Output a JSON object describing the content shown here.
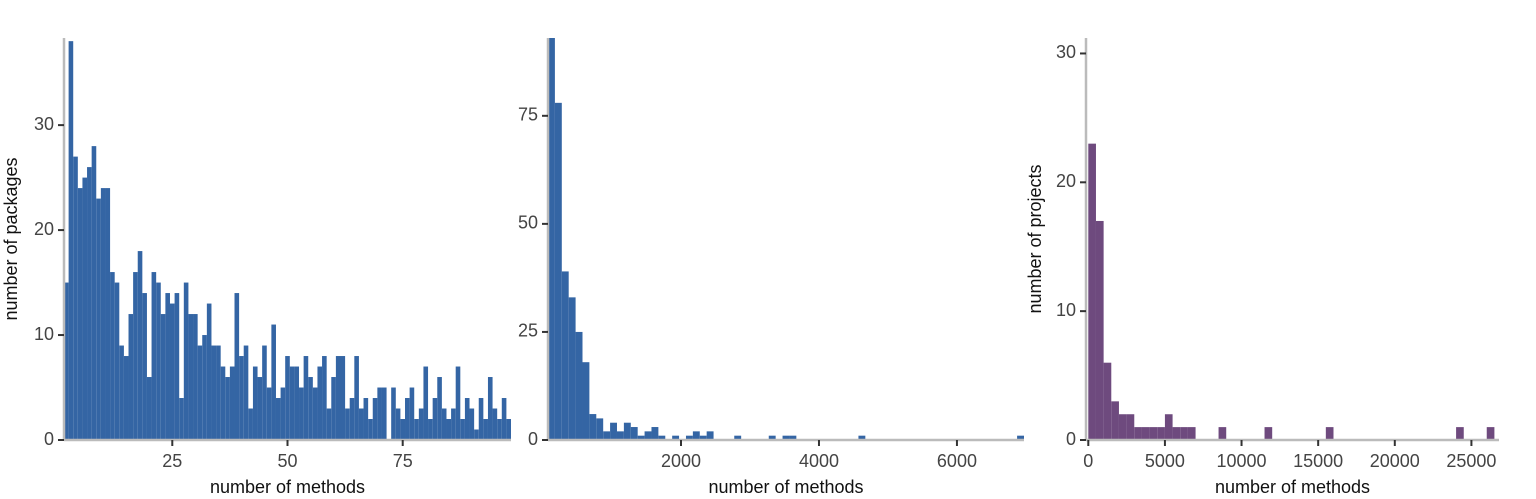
{
  "chart_data": [
    {
      "type": "histogram",
      "ylabel": "number of packages",
      "xlabel": "number of methods",
      "color": "#3465a4",
      "bins": [
        1.5,
        2.5,
        3.5,
        4.5,
        5.5,
        6.5,
        7.5,
        8.5,
        9.5,
        10.5,
        11.5,
        12.5,
        13.5,
        14.5,
        15.5,
        16.5,
        17.5,
        18.5,
        19.5,
        20.5,
        21.5,
        22.5,
        23.5,
        24.5,
        25.5,
        26.5,
        27.5,
        28.5,
        29.5,
        30.5,
        31.5,
        32.5,
        33.5,
        34.5,
        35.5,
        36.5,
        37.5,
        38.5,
        39.5,
        40.5,
        41.5,
        42.5,
        43.5,
        44.5,
        45.5,
        46.5,
        47.5,
        48.5,
        49.5,
        50.5,
        51.5,
        52.5,
        53.5,
        54.5,
        55.5,
        56.5,
        57.5,
        58.5,
        59.5,
        60.5,
        61.5,
        62.5,
        63.5,
        64.5,
        65.5,
        66.5,
        67.5,
        68.5,
        69.5,
        70.5,
        71.5,
        72.5,
        73.5,
        74.5,
        75.5,
        76.5,
        77.5,
        78.5,
        79.5,
        80.5,
        81.5,
        82.5,
        83.5,
        84.5,
        85.5,
        86.5,
        87.5,
        88.5,
        89.5,
        90.5,
        91.5,
        92.5,
        93.5,
        94.5,
        95.5,
        96.5,
        97.5,
        98.5
      ],
      "values": [
        15,
        38,
        27,
        24,
        25,
        26,
        28,
        23,
        24,
        24,
        16,
        15,
        9,
        8,
        12,
        16,
        18,
        14,
        6,
        16,
        15,
        12,
        14,
        13,
        14,
        4,
        15,
        12,
        12,
        9,
        10,
        13,
        9,
        9,
        7,
        6,
        7,
        14,
        8,
        9,
        3,
        7,
        6,
        9,
        5,
        11,
        4,
        5,
        8,
        7,
        7,
        5,
        8,
        6,
        5,
        7,
        8,
        3,
        6,
        8,
        8,
        3,
        4,
        8,
        3,
        4,
        2,
        4,
        5,
        5,
        0,
        5,
        3,
        2,
        4,
        5,
        2,
        3,
        7,
        2,
        4,
        6,
        3,
        2,
        3,
        7,
        2,
        4,
        3,
        1,
        4,
        2,
        6,
        3,
        2,
        4,
        2
      ],
      "xlim": [
        1.5,
        98.5
      ],
      "ylim": [
        0,
        38.3
      ],
      "xticks": [
        25,
        50,
        75
      ],
      "yticks": [
        0,
        10,
        20,
        30
      ]
    },
    {
      "type": "histogram",
      "xlabel": "number of methods",
      "color": "#3465a4",
      "bins": [
        72,
        172,
        272,
        372,
        472,
        572,
        672,
        772,
        872,
        972,
        1072,
        1172,
        1272,
        1372,
        1472,
        1572,
        1672,
        1772,
        1872,
        1972,
        2072,
        2172,
        2272,
        2372,
        2472,
        2572,
        2672,
        2772,
        2872,
        2972,
        3072,
        3172,
        3272,
        3372,
        3472,
        3572,
        3672,
        3772,
        3872,
        3972,
        4072,
        4172,
        4272,
        4372,
        4472,
        4572,
        4672,
        4772,
        4872,
        4972,
        5072,
        5172,
        5272,
        5372,
        5472,
        5572,
        5672,
        5772,
        5872,
        5972,
        6072,
        6172,
        6272,
        6372,
        6472,
        6572,
        6672,
        6772,
        6872,
        6972
      ],
      "values": [
        93,
        78,
        39,
        33,
        25,
        18,
        6,
        5,
        2,
        4,
        2,
        4,
        3,
        1,
        2,
        3,
        1,
        0,
        1,
        0,
        1,
        2,
        1,
        2,
        0,
        0,
        0,
        1,
        0,
        0,
        0,
        0,
        1,
        0,
        1,
        1,
        0,
        0,
        0,
        0,
        0,
        0,
        0,
        0,
        0,
        1,
        0,
        0,
        0,
        0,
        0,
        0,
        0,
        0,
        0,
        0,
        0,
        0,
        0,
        0,
        0,
        0,
        0,
        0,
        0,
        0,
        0,
        0,
        1
      ],
      "xlim": [
        72,
        6972
      ],
      "ylim": [
        0,
        93
      ],
      "xticks": [
        2000,
        4000,
        6000
      ],
      "yticks": [
        0,
        25,
        50,
        75
      ]
    },
    {
      "type": "histogram",
      "ylabel": "number of projects",
      "xlabel": "number of methods",
      "color": "#6e4a7e",
      "bins": [
        0,
        500,
        1000,
        1500,
        2000,
        2500,
        3000,
        3500,
        4000,
        4500,
        5000,
        5500,
        6000,
        6500,
        7000,
        7500,
        8000,
        8500,
        9000,
        9500,
        10000,
        10500,
        11000,
        11500,
        12000,
        12500,
        13000,
        13500,
        14000,
        14500,
        15000,
        15500,
        16000,
        16500,
        17000,
        17500,
        18000,
        18500,
        19000,
        19500,
        20000,
        20500,
        21000,
        21500,
        22000,
        22500,
        23000,
        23500,
        24000,
        24500,
        25000,
        25500,
        26000,
        26500,
        27000
      ],
      "values": [
        23,
        17,
        6,
        3,
        2,
        2,
        1,
        1,
        1,
        1,
        2,
        1,
        1,
        1,
        0,
        0,
        0,
        1,
        0,
        0,
        0,
        0,
        0,
        1,
        0,
        0,
        0,
        0,
        0,
        0,
        0,
        1,
        0,
        0,
        0,
        0,
        0,
        0,
        0,
        0,
        0,
        0,
        0,
        0,
        0,
        0,
        0,
        0,
        1,
        0,
        0,
        0,
        1,
        0
      ],
      "xlim": [
        -150,
        26800
      ],
      "ylim": [
        0,
        31.2
      ],
      "xticks": [
        0,
        5000,
        10000,
        15000,
        20000,
        25000
      ],
      "yticks": [
        0,
        10,
        20,
        30
      ]
    }
  ]
}
